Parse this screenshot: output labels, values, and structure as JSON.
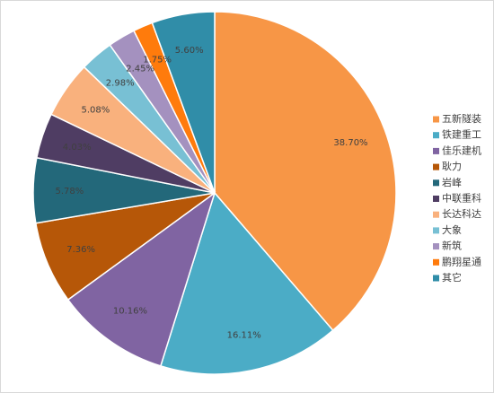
{
  "chart_data": {
    "type": "pie",
    "title": "",
    "legend_position": "right",
    "start_angle_deg": 0,
    "direction": "clockwise",
    "slices": [
      {
        "label": "五新隧装",
        "value": 38.7,
        "value_label": "38.70%",
        "color": "#F79646"
      },
      {
        "label": "铁建重工",
        "value": 16.11,
        "value_label": "16.11%",
        "color": "#4BACC6"
      },
      {
        "label": "佳乐建机",
        "value": 10.16,
        "value_label": "10.16%",
        "color": "#8064A2"
      },
      {
        "label": "耿力",
        "value": 7.36,
        "value_label": "7.36%",
        "color": "#B65708"
      },
      {
        "label": "岩峰",
        "value": 5.78,
        "value_label": "5.78%",
        "color": "#23687A"
      },
      {
        "label": "中联重科",
        "value": 4.03,
        "value_label": "4.03%",
        "color": "#4F3D63"
      },
      {
        "label": "长达科达",
        "value": 5.08,
        "value_label": "5.08%",
        "color": "#F9B17D"
      },
      {
        "label": "大象",
        "value": 2.98,
        "value_label": "2.98%",
        "color": "#78C0D4"
      },
      {
        "label": "新筑",
        "value": 2.45,
        "value_label": "2.45%",
        "color": "#A491BF"
      },
      {
        "label": "鹏翔星通",
        "value": 1.75,
        "value_label": "1.75%",
        "color": "#FF7B0C"
      },
      {
        "label": "其它",
        "value": 5.6,
        "value_label": "5.60%",
        "color": "#308DA8"
      }
    ]
  }
}
